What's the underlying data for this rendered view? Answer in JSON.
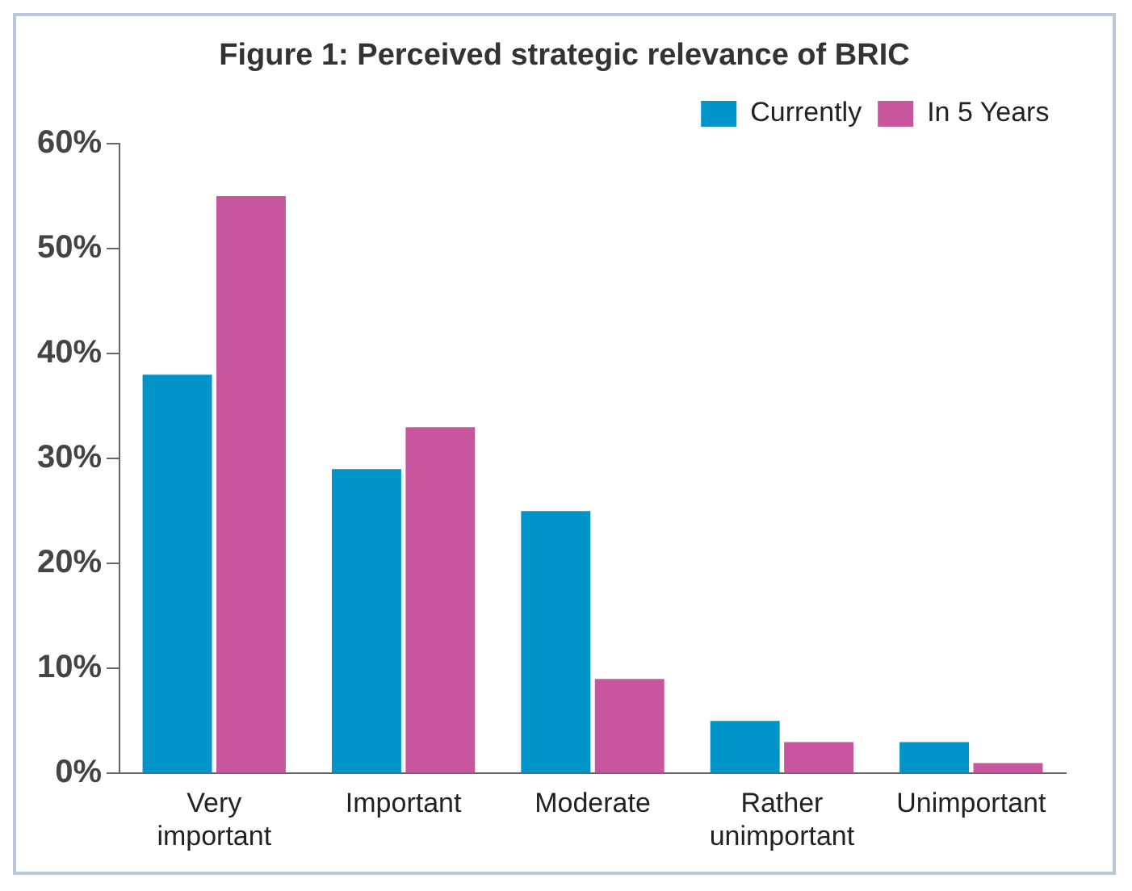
{
  "chart_data": {
    "type": "bar",
    "title": "Figure 1: Perceived strategic relevance of BRIC",
    "categories": [
      "Very important",
      "Important",
      "Moderate",
      "Rather unimportant",
      "Unimportant"
    ],
    "series": [
      {
        "name": "Currently",
        "color": "#0094c8",
        "values": [
          38,
          29,
          25,
          5,
          3
        ]
      },
      {
        "name": "In 5 Years",
        "color": "#c8569f",
        "values": [
          55,
          33,
          9,
          3,
          1
        ]
      }
    ],
    "ylim": [
      0,
      60
    ],
    "yticks": [
      {
        "value": 0,
        "label": "0%"
      },
      {
        "value": 10,
        "label": "10%"
      },
      {
        "value": 20,
        "label": "20%"
      },
      {
        "value": 30,
        "label": "30%"
      },
      {
        "value": 40,
        "label": "40%"
      },
      {
        "value": 50,
        "label": "50%"
      },
      {
        "value": 60,
        "label": "60%"
      }
    ],
    "grid": false,
    "legend": "top right"
  }
}
